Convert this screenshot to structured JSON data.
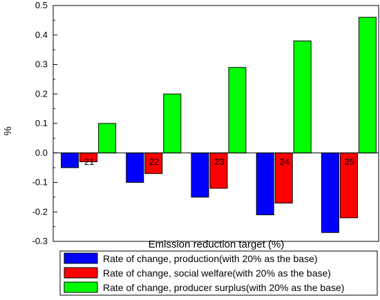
{
  "chart_data": {
    "type": "bar",
    "title": "",
    "xlabel": "Emission reduction target (%)",
    "ylabel": "%",
    "ylim": [
      -0.3,
      0.5
    ],
    "yticks": [
      "-0.3",
      "-0.2",
      "-0.1",
      "0.0",
      "0.1",
      "0.2",
      "0.3",
      "0.4",
      "0.5"
    ],
    "yticks_values": [
      -0.3,
      -0.2,
      -0.1,
      0.0,
      0.1,
      0.2,
      0.3,
      0.4,
      0.5
    ],
    "categories": [
      "21",
      "22",
      "23",
      "24",
      "25"
    ],
    "series": [
      {
        "name": "Rate of change, production(with 20% as the base)",
        "color": "#0000ff",
        "values": [
          -0.05,
          -0.1,
          -0.15,
          -0.21,
          -0.27
        ]
      },
      {
        "name": "Rate of change, social welfare(with 20% as the base)",
        "color": "#ff0000",
        "values": [
          -0.03,
          -0.07,
          -0.12,
          -0.17,
          -0.22
        ]
      },
      {
        "name": "Rate of change, producer surplus(with 20% as the base)",
        "color": "#00ff00",
        "values": [
          0.1,
          0.2,
          0.29,
          0.38,
          0.46
        ]
      }
    ],
    "grid": false,
    "legend_position": "bottom"
  }
}
